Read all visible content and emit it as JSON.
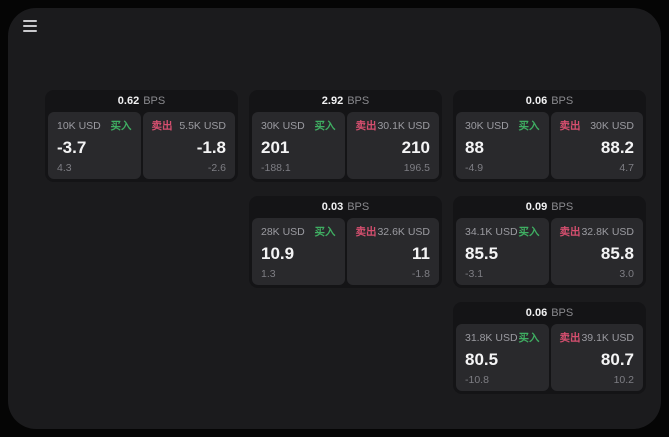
{
  "labels": {
    "buy": "买入",
    "sell": "卖出",
    "bps_unit": "BPS"
  },
  "colors": {
    "background": "#050505",
    "surface": "#1b1b1d",
    "card": "#141416",
    "panel": "#29292c",
    "buy_green": "#3fae62",
    "sell_red": "#d64f6f",
    "text_primary": "#f4f4f5",
    "text_secondary": "#9b9ba1"
  },
  "menu": {
    "icon": "hamburger-icon"
  },
  "cards": [
    {
      "bps": "0.62",
      "buy": {
        "amount": "10K USD",
        "value": "-3.7",
        "delta": "4.3"
      },
      "sell": {
        "amount": "5.5K USD",
        "value": "-1.8",
        "delta": "-2.6"
      }
    },
    {
      "bps": "2.92",
      "buy": {
        "amount": "30K USD",
        "value": "201",
        "delta": "-188.1"
      },
      "sell": {
        "amount": "30.1K USD",
        "value": "210",
        "delta": "196.5"
      }
    },
    {
      "bps": "0.06",
      "buy": {
        "amount": "30K USD",
        "value": "88",
        "delta": "-4.9"
      },
      "sell": {
        "amount": "30K USD",
        "value": "88.2",
        "delta": "4.7"
      }
    },
    {
      "bps": "0.03",
      "buy": {
        "amount": "28K USD",
        "value": "10.9",
        "delta": "1.3"
      },
      "sell": {
        "amount": "32.6K USD",
        "value": "11",
        "delta": "-1.8"
      }
    },
    {
      "bps": "0.09",
      "buy": {
        "amount": "34.1K USD",
        "value": "85.5",
        "delta": "-3.1"
      },
      "sell": {
        "amount": "32.8K USD",
        "value": "85.8",
        "delta": "3.0"
      }
    },
    {
      "bps": "0.06",
      "buy": {
        "amount": "31.8K USD",
        "value": "80.5",
        "delta": "-10.8"
      },
      "sell": {
        "amount": "39.1K USD",
        "value": "80.7",
        "delta": "10.2"
      }
    }
  ]
}
